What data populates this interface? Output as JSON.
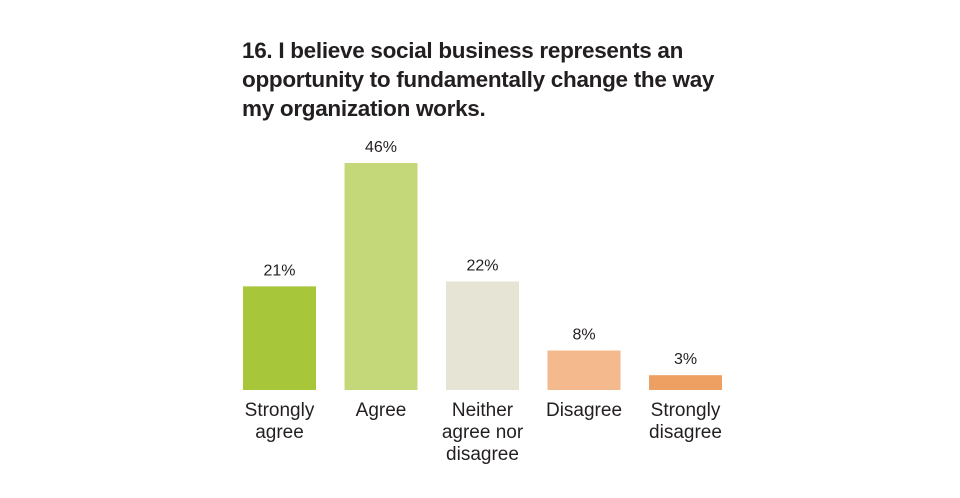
{
  "chart_data": {
    "type": "bar",
    "title": "16. I believe social business represents an\nopportunity to fundamentally change the way\nmy organization works.",
    "categories": [
      [
        "Strongly",
        "agree"
      ],
      [
        "Agree"
      ],
      [
        "Neither",
        "agree nor",
        "disagree"
      ],
      [
        "Disagree"
      ],
      [
        "Strongly",
        "disagree"
      ]
    ],
    "values": [
      21,
      46,
      22,
      8,
      3
    ],
    "value_labels": [
      "21%",
      "46%",
      "22%",
      "8%",
      "3%"
    ],
    "colors": [
      "#a8c63a",
      "#c4d87a",
      "#e6e4d4",
      "#f4b98c",
      "#eea062"
    ],
    "ylim": [
      0,
      46
    ],
    "grid": false
  }
}
